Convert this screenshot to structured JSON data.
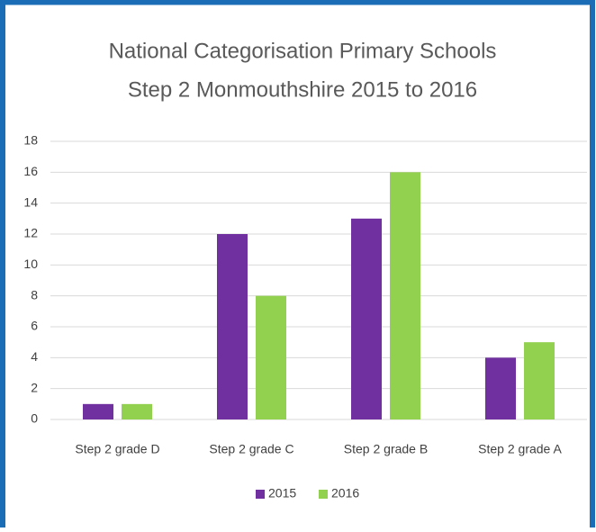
{
  "chart_data": {
    "type": "bar",
    "title": [
      "National Categorisation Primary Schools",
      "Step 2 Monmouthshire 2015 to 2016"
    ],
    "categories": [
      "Step 2 grade D",
      "Step 2 grade C",
      "Step 2 grade B",
      "Step 2 grade A"
    ],
    "series": [
      {
        "name": "2015",
        "color": "#7030a0",
        "values": [
          1,
          12,
          13,
          4
        ]
      },
      {
        "name": "2016",
        "color": "#92d050",
        "values": [
          1,
          8,
          16,
          5
        ]
      }
    ],
    "ylim": [
      0,
      18
    ],
    "yticks": [
      0,
      2,
      4,
      6,
      8,
      10,
      12,
      14,
      16,
      18
    ],
    "grid": true,
    "legend": "bottom"
  }
}
